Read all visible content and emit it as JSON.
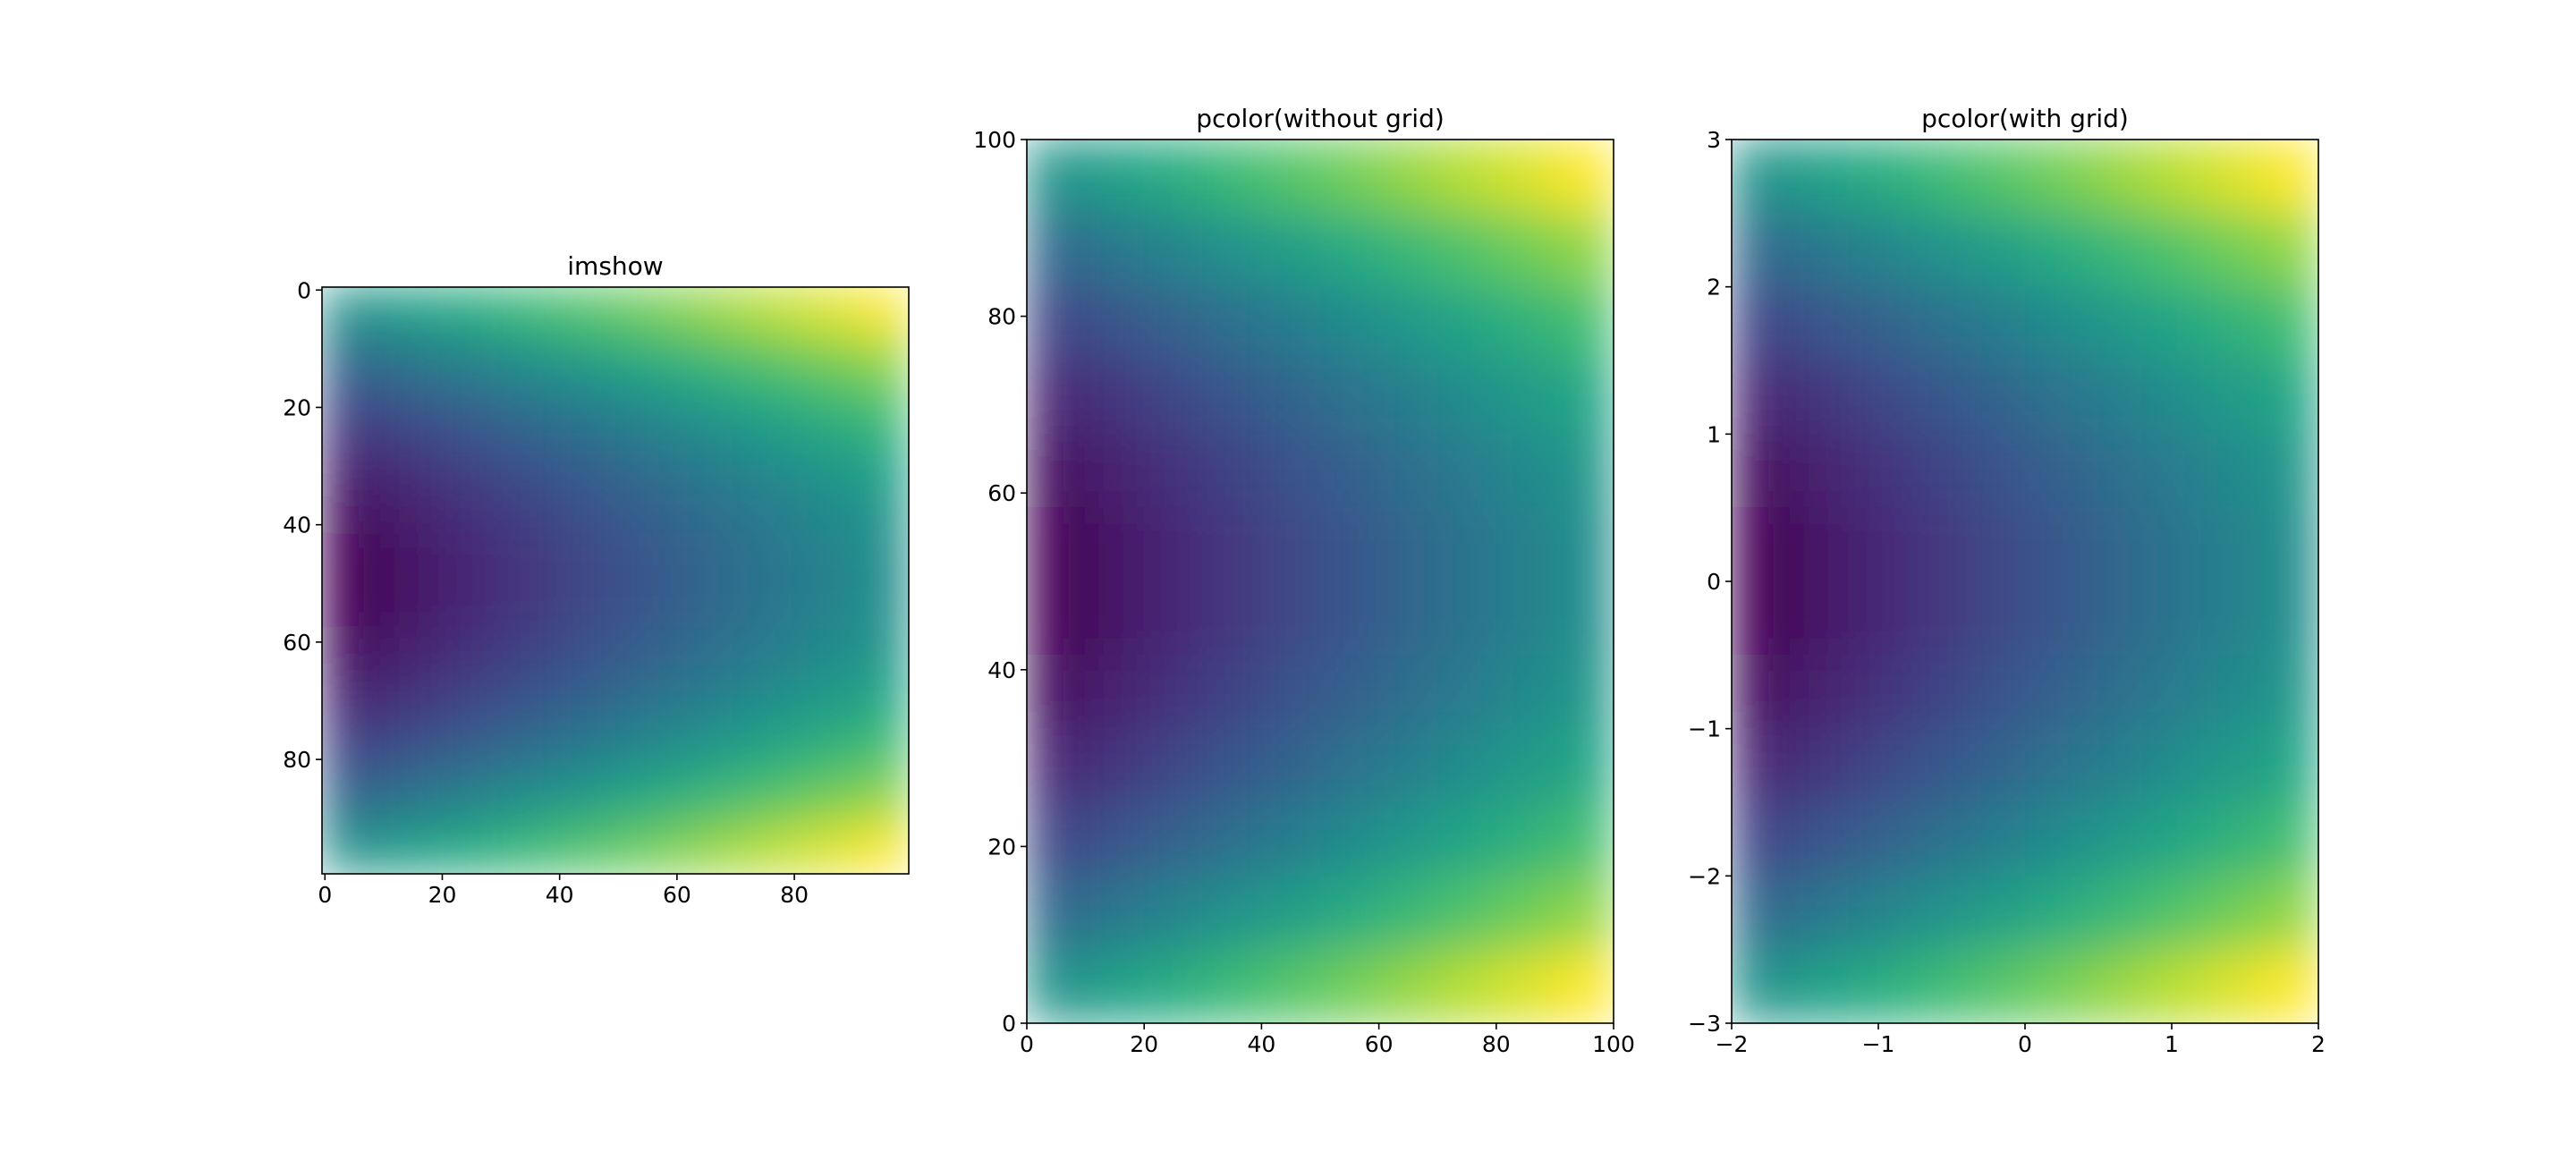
{
  "chart_data": [
    {
      "type": "heatmap",
      "title": "imshow",
      "colormap": "viridis",
      "xlim": [
        -0.5,
        99.5
      ],
      "ylim": [
        99.5,
        -0.5
      ],
      "xticks": [
        0,
        20,
        40,
        60,
        80
      ],
      "yticks": [
        0,
        20,
        40,
        60,
        80
      ],
      "z": [
        [
          3.96,
          4.76,
          5.56,
          6.36,
          7.16,
          7.96,
          8.76,
          9.56,
          10.36,
          11.16
        ],
        [
          1.46,
          2.26,
          3.06,
          3.86,
          4.66,
          5.46,
          6.26,
          7.06,
          7.86,
          8.66
        ],
        [
          -0.54,
          0.26,
          1.06,
          1.86,
          2.66,
          3.46,
          4.26,
          5.06,
          5.86,
          6.66
        ],
        [
          -2.04,
          -1.24,
          -0.44,
          0.36,
          1.16,
          1.96,
          2.76,
          3.56,
          4.36,
          5.16
        ],
        [
          -3.04,
          -2.24,
          -1.44,
          -0.64,
          0.16,
          0.96,
          1.76,
          2.56,
          3.36,
          4.16
        ],
        [
          -3.54,
          -2.74,
          -1.94,
          -1.14,
          -0.34,
          0.46,
          1.26,
          2.06,
          2.86,
          3.66
        ],
        [
          -3.54,
          -2.74,
          -1.94,
          -1.14,
          -0.34,
          0.46,
          1.26,
          2.06,
          2.86,
          3.66
        ],
        [
          -3.04,
          -2.24,
          -1.44,
          -0.64,
          0.16,
          0.96,
          1.76,
          2.56,
          3.36,
          4.16
        ],
        [
          -2.04,
          -1.24,
          -0.44,
          0.36,
          1.16,
          1.96,
          2.76,
          3.56,
          4.36,
          5.16
        ],
        [
          -0.54,
          0.26,
          1.06,
          1.86,
          2.66,
          3.46,
          4.26,
          5.06,
          5.86,
          6.66
        ],
        [
          1.46,
          2.26,
          3.06,
          3.86,
          4.66,
          5.46,
          6.26,
          7.06,
          7.86,
          8.66
        ],
        [
          3.96,
          4.76,
          5.56,
          6.36,
          7.16,
          7.96,
          8.76,
          9.56,
          10.36,
          11.16
        ]
      ]
    },
    {
      "type": "heatmap",
      "title": "pcolor(without grid)",
      "colormap": "viridis",
      "xlim": [
        0,
        100
      ],
      "ylim": [
        0,
        100
      ],
      "xticks": [
        0,
        20,
        40,
        60,
        80,
        100
      ],
      "yticks": [
        0,
        20,
        40,
        60,
        80,
        100
      ],
      "z": [
        [
          3.96,
          4.76,
          5.56,
          6.36,
          7.16,
          7.96,
          8.76,
          9.56,
          10.36,
          11.16
        ],
        [
          1.46,
          2.26,
          3.06,
          3.86,
          4.66,
          5.46,
          6.26,
          7.06,
          7.86,
          8.66
        ],
        [
          -0.54,
          0.26,
          1.06,
          1.86,
          2.66,
          3.46,
          4.26,
          5.06,
          5.86,
          6.66
        ],
        [
          -2.04,
          -1.24,
          -0.44,
          0.36,
          1.16,
          1.96,
          2.76,
          3.56,
          4.36,
          5.16
        ],
        [
          -3.04,
          -2.24,
          -1.44,
          -0.64,
          0.16,
          0.96,
          1.76,
          2.56,
          3.36,
          4.16
        ],
        [
          -3.54,
          -2.74,
          -1.94,
          -1.14,
          -0.34,
          0.46,
          1.26,
          2.06,
          2.86,
          3.66
        ],
        [
          -3.54,
          -2.74,
          -1.94,
          -1.14,
          -0.34,
          0.46,
          1.26,
          2.06,
          2.86,
          3.66
        ],
        [
          -3.04,
          -2.24,
          -1.44,
          -0.64,
          0.16,
          0.96,
          1.76,
          2.56,
          3.36,
          4.16
        ],
        [
          -2.04,
          -1.24,
          -0.44,
          0.36,
          1.16,
          1.96,
          2.76,
          3.56,
          4.36,
          5.16
        ],
        [
          -0.54,
          0.26,
          1.06,
          1.86,
          2.66,
          3.46,
          4.26,
          5.06,
          5.86,
          6.66
        ],
        [
          1.46,
          2.26,
          3.06,
          3.86,
          4.66,
          5.46,
          6.26,
          7.06,
          7.86,
          8.66
        ],
        [
          3.96,
          4.76,
          5.56,
          6.36,
          7.16,
          7.96,
          8.76,
          9.56,
          10.36,
          11.16
        ]
      ]
    },
    {
      "type": "heatmap",
      "title": "pcolor(with grid)",
      "colormap": "viridis",
      "xlim": [
        -2,
        2
      ],
      "ylim": [
        -3,
        3
      ],
      "xticks": [
        {
          "value": -2,
          "label": "−2"
        },
        {
          "value": -1,
          "label": "−1"
        },
        0,
        1,
        2
      ],
      "yticks": [
        {
          "value": -3,
          "label": "−3"
        },
        {
          "value": -2,
          "label": "−2"
        },
        {
          "value": -1,
          "label": "−1"
        },
        0,
        1,
        2,
        3
      ],
      "z": [
        [
          3.96,
          4.76,
          5.56,
          6.36,
          7.16,
          7.96,
          8.76,
          9.56,
          10.36,
          11.16
        ],
        [
          1.46,
          2.26,
          3.06,
          3.86,
          4.66,
          5.46,
          6.26,
          7.06,
          7.86,
          8.66
        ],
        [
          -0.54,
          0.26,
          1.06,
          1.86,
          2.66,
          3.46,
          4.26,
          5.06,
          5.86,
          6.66
        ],
        [
          -2.04,
          -1.24,
          -0.44,
          0.36,
          1.16,
          1.96,
          2.76,
          3.56,
          4.36,
          5.16
        ],
        [
          -3.04,
          -2.24,
          -1.44,
          -0.64,
          0.16,
          0.96,
          1.76,
          2.56,
          3.36,
          4.16
        ],
        [
          -3.54,
          -2.74,
          -1.94,
          -1.14,
          -0.34,
          0.46,
          1.26,
          2.06,
          2.86,
          3.66
        ],
        [
          -3.54,
          -2.74,
          -1.94,
          -1.14,
          -0.34,
          0.46,
          1.26,
          2.06,
          2.86,
          3.66
        ],
        [
          -3.04,
          -2.24,
          -1.44,
          -0.64,
          0.16,
          0.96,
          1.76,
          2.56,
          3.36,
          4.16
        ],
        [
          -2.04,
          -1.24,
          -0.44,
          0.36,
          1.16,
          1.96,
          2.76,
          3.56,
          4.36,
          5.16
        ],
        [
          -0.54,
          0.26,
          1.06,
          1.86,
          2.66,
          3.46,
          4.26,
          5.06,
          5.86,
          6.66
        ],
        [
          1.46,
          2.26,
          3.06,
          3.86,
          4.66,
          5.46,
          6.26,
          7.06,
          7.86,
          8.66
        ],
        [
          3.96,
          4.76,
          5.56,
          6.36,
          7.16,
          7.96,
          8.76,
          9.56,
          10.36,
          11.16
        ]
      ]
    }
  ]
}
